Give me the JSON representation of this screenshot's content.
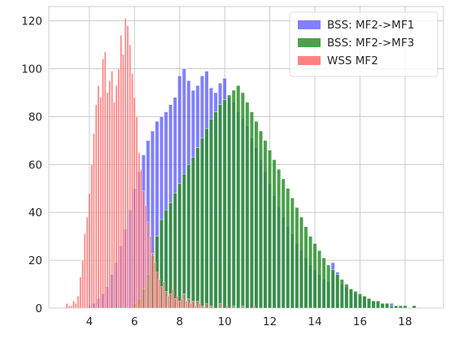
{
  "chart_data": {
    "type": "bar",
    "subtype": "overlaid-histogram",
    "title": "",
    "xlabel": "",
    "ylabel": "",
    "xlim": [
      2.2,
      19.7
    ],
    "ylim": [
      0,
      126
    ],
    "grid": true,
    "legend_position": "top-right",
    "x_ticks": [
      4,
      6,
      8,
      10,
      12,
      14,
      16,
      18
    ],
    "y_ticks": [
      0,
      20,
      40,
      60,
      80,
      100,
      120
    ],
    "series": [
      {
        "name": "BSS: MF2->MF1",
        "color": "#4b4bff",
        "alpha": 0.7,
        "bin_width": 0.16,
        "bins": [
          [
            4.0,
            1
          ],
          [
            4.2,
            2
          ],
          [
            4.4,
            4
          ],
          [
            4.6,
            6
          ],
          [
            4.8,
            9
          ],
          [
            5.0,
            14
          ],
          [
            5.2,
            19
          ],
          [
            5.4,
            26
          ],
          [
            5.6,
            33
          ],
          [
            5.8,
            41
          ],
          [
            6.0,
            50
          ],
          [
            6.2,
            57
          ],
          [
            6.4,
            64
          ],
          [
            6.6,
            70
          ],
          [
            6.8,
            74
          ],
          [
            7.0,
            78
          ],
          [
            7.2,
            80
          ],
          [
            7.4,
            82
          ],
          [
            7.6,
            85
          ],
          [
            7.8,
            88
          ],
          [
            8.0,
            97
          ],
          [
            8.2,
            100
          ],
          [
            8.4,
            95
          ],
          [
            8.6,
            91
          ],
          [
            8.8,
            93
          ],
          [
            9.0,
            97
          ],
          [
            9.2,
            99
          ],
          [
            9.4,
            92
          ],
          [
            9.6,
            90
          ],
          [
            9.8,
            94
          ],
          [
            10.0,
            96
          ],
          [
            10.2,
            88
          ],
          [
            10.4,
            86
          ],
          [
            10.6,
            82
          ],
          [
            10.8,
            79
          ],
          [
            11.0,
            76
          ],
          [
            11.2,
            71
          ],
          [
            11.4,
            67
          ],
          [
            11.6,
            62
          ],
          [
            11.8,
            57
          ],
          [
            12.0,
            52
          ],
          [
            12.2,
            47
          ],
          [
            12.4,
            42
          ],
          [
            12.6,
            38
          ],
          [
            12.8,
            34
          ],
          [
            13.0,
            31
          ],
          [
            13.2,
            27
          ],
          [
            13.4,
            24
          ],
          [
            13.6,
            21
          ],
          [
            13.8,
            18
          ],
          [
            14.0,
            16
          ],
          [
            14.2,
            14
          ],
          [
            14.4,
            12
          ],
          [
            14.6,
            11
          ],
          [
            14.8,
            19
          ],
          [
            15.0,
            15
          ],
          [
            15.2,
            10
          ],
          [
            15.4,
            9
          ],
          [
            15.6,
            8
          ],
          [
            15.8,
            6
          ],
          [
            16.0,
            5
          ],
          [
            16.2,
            5
          ],
          [
            16.4,
            4
          ],
          [
            16.6,
            3
          ],
          [
            16.8,
            3
          ],
          [
            17.0,
            2
          ],
          [
            17.2,
            2
          ],
          [
            17.4,
            2
          ],
          [
            17.6,
            1
          ],
          [
            17.8,
            1
          ],
          [
            18.0,
            1
          ],
          [
            18.4,
            1
          ]
        ]
      },
      {
        "name": "BSS: MF2->MF3",
        "color": "#2d8f2d",
        "alpha": 0.85,
        "bin_width": 0.16,
        "bins": [
          [
            6.0,
            2
          ],
          [
            6.2,
            4
          ],
          [
            6.4,
            8
          ],
          [
            6.6,
            14
          ],
          [
            6.8,
            22
          ],
          [
            7.0,
            30
          ],
          [
            7.2,
            37
          ],
          [
            7.4,
            41
          ],
          [
            7.6,
            44
          ],
          [
            7.8,
            48
          ],
          [
            8.0,
            52
          ],
          [
            8.2,
            56
          ],
          [
            8.4,
            60
          ],
          [
            8.6,
            63
          ],
          [
            8.8,
            67
          ],
          [
            9.0,
            71
          ],
          [
            9.2,
            75
          ],
          [
            9.4,
            79
          ],
          [
            9.6,
            82
          ],
          [
            9.8,
            85
          ],
          [
            10.0,
            87
          ],
          [
            10.2,
            89
          ],
          [
            10.4,
            91
          ],
          [
            10.6,
            93
          ],
          [
            10.8,
            90
          ],
          [
            11.0,
            86
          ],
          [
            11.2,
            82
          ],
          [
            11.4,
            78
          ],
          [
            11.6,
            74
          ],
          [
            11.8,
            70
          ],
          [
            12.0,
            66
          ],
          [
            12.2,
            62
          ],
          [
            12.4,
            58
          ],
          [
            12.6,
            54
          ],
          [
            12.8,
            50
          ],
          [
            13.0,
            46
          ],
          [
            13.2,
            42
          ],
          [
            13.4,
            38
          ],
          [
            13.6,
            34
          ],
          [
            13.8,
            30
          ],
          [
            14.0,
            27
          ],
          [
            14.2,
            24
          ],
          [
            14.4,
            21
          ],
          [
            14.6,
            18
          ],
          [
            14.8,
            16
          ],
          [
            15.0,
            14
          ],
          [
            15.2,
            12
          ],
          [
            15.4,
            10
          ],
          [
            15.6,
            8
          ],
          [
            15.8,
            7
          ],
          [
            16.0,
            6
          ],
          [
            16.2,
            5
          ],
          [
            16.4,
            4
          ],
          [
            16.6,
            3
          ],
          [
            16.8,
            3
          ],
          [
            17.0,
            2
          ],
          [
            17.2,
            2
          ],
          [
            17.4,
            1
          ],
          [
            17.6,
            1
          ],
          [
            17.8,
            1
          ],
          [
            18.0,
            1
          ],
          [
            18.4,
            1
          ]
        ]
      },
      {
        "name": "WSS MF2",
        "color": "#ff4b4b",
        "alpha": 0.7,
        "bin_width": 0.075,
        "bins": [
          [
            3.0,
            2
          ],
          [
            3.1,
            1
          ],
          [
            3.2,
            1
          ],
          [
            3.3,
            3
          ],
          [
            3.4,
            2
          ],
          [
            3.5,
            5
          ],
          [
            3.6,
            13
          ],
          [
            3.7,
            20
          ],
          [
            3.8,
            31
          ],
          [
            3.9,
            38
          ],
          [
            4.0,
            48
          ],
          [
            4.1,
            60
          ],
          [
            4.2,
            73
          ],
          [
            4.3,
            85
          ],
          [
            4.4,
            93
          ],
          [
            4.5,
            88
          ],
          [
            4.6,
            104
          ],
          [
            4.7,
            107
          ],
          [
            4.8,
            90
          ],
          [
            4.9,
            95
          ],
          [
            5.0,
            99
          ],
          [
            5.1,
            86
          ],
          [
            5.2,
            93
          ],
          [
            5.3,
            100
          ],
          [
            5.4,
            114
          ],
          [
            5.5,
            106
          ],
          [
            5.6,
            121
          ],
          [
            5.7,
            118
          ],
          [
            5.8,
            110
          ],
          [
            5.9,
            98
          ],
          [
            6.0,
            88
          ],
          [
            6.1,
            80
          ],
          [
            6.2,
            65
          ],
          [
            6.3,
            58
          ],
          [
            6.4,
            49
          ],
          [
            6.5,
            43
          ],
          [
            6.6,
            36
          ],
          [
            6.7,
            30
          ],
          [
            6.8,
            23
          ],
          [
            6.9,
            19
          ],
          [
            7.0,
            15
          ],
          [
            7.1,
            12
          ],
          [
            7.2,
            9
          ],
          [
            7.3,
            11
          ],
          [
            7.4,
            7
          ],
          [
            7.5,
            5
          ],
          [
            7.6,
            6
          ],
          [
            7.7,
            8
          ],
          [
            7.8,
            4
          ],
          [
            7.9,
            5
          ],
          [
            8.0,
            3
          ],
          [
            8.1,
            4
          ],
          [
            8.2,
            6
          ],
          [
            8.3,
            3
          ],
          [
            8.4,
            4
          ],
          [
            8.5,
            2
          ],
          [
            8.6,
            3
          ],
          [
            8.7,
            1
          ],
          [
            8.8,
            3
          ],
          [
            8.9,
            2
          ],
          [
            9.0,
            1
          ],
          [
            9.2,
            2
          ],
          [
            9.4,
            1
          ],
          [
            9.8,
            2
          ],
          [
            10.1,
            1
          ],
          [
            10.4,
            1
          ],
          [
            10.8,
            1
          ],
          [
            11.3,
            1
          ]
        ]
      }
    ]
  }
}
